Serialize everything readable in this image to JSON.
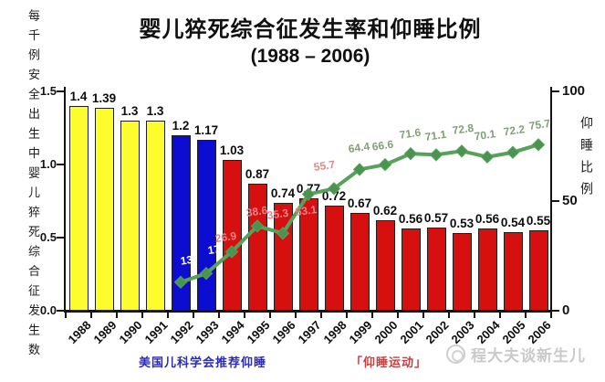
{
  "title": {
    "line1": "婴儿猝死综合征发生率和仰睡比例",
    "line2": "(1988 – 2006)"
  },
  "axes": {
    "left": {
      "label": "每千例安全出生中婴儿猝死综合征发生数",
      "ticks": [
        "1.5",
        "1.0",
        "0.5",
        "0.0"
      ]
    },
    "right": {
      "label": "仰睡比例",
      "ticks": [
        "100",
        "50",
        "0"
      ]
    }
  },
  "chart_data": {
    "type": "bar+line",
    "title": "婴儿猝死综合征发生率和仰睡比例 (1988 – 2006)",
    "categories": [
      "1988",
      "1989",
      "1990",
      "1991",
      "1992",
      "1993",
      "1994",
      "1995",
      "1996",
      "1997",
      "1998",
      "1999",
      "2000",
      "2001",
      "2002",
      "2003",
      "2004",
      "2005",
      "2006"
    ],
    "left_ylim": [
      0,
      1.5
    ],
    "right_ylim": [
      0,
      100
    ],
    "grid": false,
    "series": [
      {
        "name": "每千例安全出生中婴儿猝死综合征发生数",
        "type": "bar",
        "axis": "left",
        "values": [
          1.4,
          1.39,
          1.3,
          1.3,
          1.2,
          1.17,
          1.03,
          0.87,
          0.74,
          0.77,
          0.72,
          0.67,
          0.62,
          0.56,
          0.57,
          0.53,
          0.56,
          0.54,
          0.55
        ],
        "color_keys": [
          "yellow",
          "yellow",
          "yellow",
          "yellow",
          "blue",
          "blue",
          "red",
          "red",
          "red",
          "red",
          "red",
          "red",
          "red",
          "red",
          "red",
          "red",
          "red",
          "red",
          "red"
        ]
      },
      {
        "name": "仰睡比例",
        "type": "line",
        "axis": "right",
        "start_category": "1992",
        "values": [
          13,
          17,
          26.9,
          38.6,
          35.3,
          53.1,
          55.7,
          64.4,
          66.6,
          71.6,
          71.1,
          72.8,
          70.1,
          72.2,
          75.7
        ],
        "label_color_keys": [
          "white",
          "white",
          "pink",
          "pink",
          "pink",
          "pink",
          "pink",
          "green",
          "green",
          "green",
          "green",
          "green",
          "green",
          "green",
          "green"
        ]
      }
    ]
  },
  "annotations": {
    "aap_recommendation": "美国儿科学会推荐仰睡",
    "back_to_sleep_campaign": "「仰睡运动」"
  },
  "watermark": {
    "text": "程大夫谈新生儿"
  },
  "colors": {
    "bar_yellow": "#fdfd2e",
    "bar_blue": "#0d0dd2",
    "bar_red": "#d60f0f",
    "line_green": "#57a15a",
    "marker_green": "#4a9350",
    "label_white": "#ffffff",
    "label_pink": "#e4868b",
    "label_green": "#7fa076",
    "axis_black": "#141414",
    "annotation_blue": "#2b2bb4",
    "annotation_red": "#c64040",
    "watermark_gray": "#b9b9b9"
  }
}
